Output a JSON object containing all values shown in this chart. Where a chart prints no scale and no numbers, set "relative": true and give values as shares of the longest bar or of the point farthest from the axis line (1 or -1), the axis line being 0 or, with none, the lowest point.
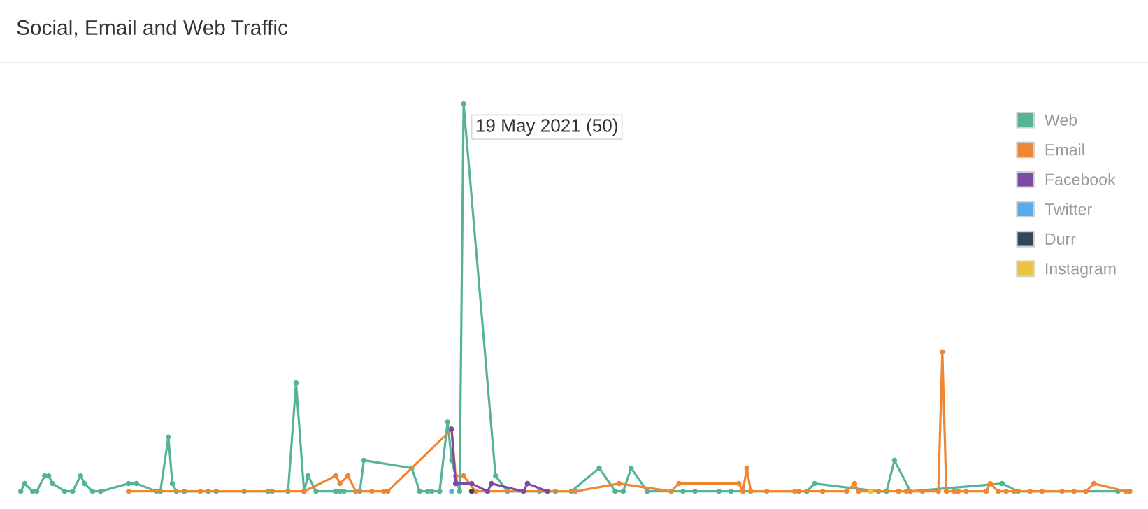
{
  "chart_data": {
    "type": "line",
    "title": "Social, Email and Web Traffic",
    "relative": true,
    "categories": [
      null,
      null,
      null,
      null,
      null,
      null,
      null,
      null,
      null,
      null,
      null,
      null,
      null,
      null,
      null,
      null,
      null,
      null,
      null,
      null,
      null,
      null,
      null,
      null,
      null,
      null,
      null,
      null,
      null,
      null,
      null,
      null,
      null,
      null,
      null,
      null,
      null,
      null,
      null,
      null,
      null,
      null,
      null,
      null,
      null,
      null,
      null,
      null,
      null,
      null,
      null,
      null,
      null,
      null,
      null,
      null,
      null,
      null,
      null,
      null,
      null,
      null,
      null,
      null,
      null,
      null,
      null,
      null,
      null,
      null,
      null,
      null,
      null,
      null,
      null,
      null,
      null,
      null,
      null,
      null,
      null,
      null,
      null,
      null,
      null,
      null,
      null,
      null,
      null,
      null,
      null,
      null,
      null,
      null,
      null,
      null,
      null,
      null,
      null,
      null,
      null,
      null,
      null,
      null,
      null,
      null,
      null,
      null,
      null,
      null,
      null,
      null,
      null,
      null,
      null,
      null,
      null,
      null,
      null,
      null,
      null,
      null,
      null,
      null,
      null,
      null,
      null,
      null,
      null,
      null,
      null,
      null,
      null,
      null,
      null,
      null,
      null,
      null,
      null,
      null,
      null,
      null,
      null,
      null,
      null,
      null,
      null,
      null,
      null,
      null,
      null,
      null,
      null,
      null,
      null,
      null,
      null,
      null,
      null,
      null,
      null,
      null,
      null,
      null,
      null,
      null,
      null,
      null,
      null,
      null,
      null,
      null,
      null,
      null,
      null,
      null,
      null,
      null,
      null,
      null,
      null,
      null,
      null,
      null,
      null,
      null,
      null,
      null,
      null,
      null,
      null,
      null,
      null,
      null,
      null,
      null,
      null,
      null,
      null,
      null,
      null,
      null,
      null,
      null,
      null,
      null,
      null,
      null,
      null,
      null,
      null,
      null,
      null,
      null,
      null,
      null,
      null,
      null,
      null,
      null,
      null,
      null,
      null,
      null,
      null,
      null,
      null,
      null,
      null,
      null,
      null,
      null,
      null,
      null,
      null,
      null,
      null,
      null,
      null,
      null,
      null,
      null,
      null,
      null,
      null,
      null,
      null,
      null,
      null,
      null,
      null,
      null,
      null,
      null,
      null,
      null,
      null,
      null,
      null,
      null,
      null,
      null,
      null,
      null,
      null,
      null,
      null,
      null,
      null,
      null,
      null,
      null,
      null,
      null,
      null,
      null,
      null,
      null,
      null
    ],
    "series": [
      {
        "name": "Web",
        "color": "#55b396",
        "values": [
          0,
          0.02,
          null,
          0,
          0,
          null,
          0.04,
          0.04,
          0.02,
          null,
          null,
          0,
          null,
          0,
          null,
          0.04,
          0.02,
          null,
          0,
          null,
          0,
          null,
          null,
          null,
          null,
          null,
          null,
          0.02,
          null,
          0.02,
          null,
          null,
          null,
          null,
          0,
          0,
          null,
          0.14,
          0.02,
          0,
          null,
          0,
          null,
          null,
          null,
          null,
          null,
          0,
          null,
          0,
          null,
          null,
          null,
          null,
          null,
          null,
          0,
          null,
          null,
          null,
          null,
          null,
          0,
          0,
          null,
          null,
          null,
          0,
          null,
          0.28,
          null,
          0,
          0.04,
          null,
          0,
          null,
          null,
          null,
          null,
          0,
          0,
          0,
          null,
          null,
          null,
          0,
          0.08,
          null,
          null,
          null,
          null,
          null,
          null,
          null,
          null,
          null,
          null,
          null,
          0.06,
          null,
          0,
          null,
          0,
          0,
          null,
          0,
          null,
          0.18,
          0.08,
          null,
          0,
          1,
          null,
          null,
          null,
          null,
          null,
          null,
          null,
          0.04,
          null,
          null,
          0,
          null,
          null,
          null,
          null,
          null,
          null,
          null,
          0,
          null,
          null,
          null,
          0,
          null,
          null,
          null,
          0,
          null,
          null,
          null,
          null,
          null,
          null,
          0.06,
          null,
          null,
          null,
          0,
          null,
          0,
          null,
          0.06,
          null,
          null,
          null,
          0,
          null,
          null,
          null,
          null,
          null,
          null,
          null,
          null,
          0,
          null,
          null,
          0,
          null,
          null,
          null,
          null,
          null,
          0,
          null,
          null,
          0,
          null,
          null,
          null,
          null,
          null,
          null,
          null,
          null,
          null,
          null,
          null,
          null,
          null,
          null,
          null,
          null,
          null,
          null,
          0,
          null,
          0.02,
          null,
          null,
          null,
          null,
          null,
          null,
          null,
          null,
          null,
          null,
          null,
          null,
          null,
          null,
          null,
          0,
          null,
          0,
          null,
          0.08,
          null,
          null,
          null,
          0,
          null,
          null,
          null,
          null,
          null,
          null,
          null,
          null,
          null,
          null,
          null,
          null,
          null,
          null,
          null,
          null,
          null,
          null,
          null,
          null,
          null,
          null,
          0.02,
          null,
          null,
          null,
          0,
          null,
          null,
          null,
          null,
          null,
          null,
          null,
          null,
          null,
          null,
          null,
          null,
          null,
          null,
          null,
          null,
          null,
          null,
          null,
          null,
          null,
          null,
          null,
          null,
          0,
          null,
          null,
          null
        ]
      },
      {
        "name": "Email",
        "color": "#ef8634",
        "values": [
          null,
          null,
          null,
          null,
          null,
          null,
          null,
          null,
          null,
          null,
          null,
          null,
          null,
          null,
          null,
          null,
          null,
          null,
          null,
          null,
          null,
          null,
          null,
          null,
          null,
          null,
          null,
          0,
          null,
          null,
          null,
          null,
          null,
          null,
          null,
          null,
          null,
          null,
          null,
          null,
          null,
          null,
          null,
          null,
          null,
          0,
          null,
          null,
          null,
          null,
          null,
          null,
          null,
          null,
          null,
          null,
          null,
          null,
          null,
          null,
          null,
          null,
          null,
          null,
          null,
          null,
          null,
          null,
          null,
          null,
          null,
          0,
          null,
          null,
          null,
          null,
          null,
          null,
          null,
          0.04,
          0.02,
          null,
          0.04,
          null,
          0,
          null,
          null,
          null,
          0,
          null,
          null,
          0,
          0,
          null,
          null,
          null,
          null,
          null,
          null,
          null,
          null,
          null,
          null,
          null,
          null,
          null,
          null,
          null,
          0.16,
          0.04,
          null,
          0.04,
          null,
          null,
          0,
          null,
          null,
          null,
          null,
          null,
          null,
          null,
          null,
          null,
          null,
          null,
          null,
          null,
          null,
          null,
          null,
          null,
          null,
          null,
          null,
          null,
          null,
          null,
          null,
          0,
          null,
          null,
          null,
          null,
          null,
          null,
          null,
          null,
          null,
          null,
          0.02,
          null,
          null,
          null,
          null,
          null,
          null,
          null,
          null,
          null,
          null,
          null,
          null,
          0,
          null,
          0.02,
          null,
          null,
          null,
          null,
          null,
          null,
          null,
          null,
          null,
          null,
          null,
          null,
          null,
          null,
          0.02,
          0,
          0.06,
          0,
          null,
          null,
          null,
          0,
          null,
          null,
          null,
          null,
          null,
          null,
          0,
          0,
          null,
          null,
          null,
          null,
          null,
          0,
          null,
          null,
          null,
          null,
          null,
          0,
          null,
          0.02,
          0,
          null,
          null,
          null,
          null,
          null,
          null,
          null,
          null,
          null,
          0,
          null,
          0,
          0,
          null,
          null,
          0,
          null,
          null,
          null,
          0,
          0.36,
          0,
          null,
          0,
          0,
          null,
          0,
          null,
          null,
          null,
          null,
          0,
          0.02,
          null,
          0,
          null,
          0,
          null,
          0,
          null,
          null,
          null,
          0,
          null,
          null,
          0,
          null,
          null,
          null,
          null,
          0,
          null,
          null,
          0,
          null,
          null,
          0,
          null,
          0.02,
          null,
          null,
          null,
          null,
          null,
          null,
          null,
          0,
          0
        ]
      },
      {
        "name": "Facebook",
        "color": "#7a4ba3",
        "values": [
          null,
          null,
          null,
          null,
          null,
          null,
          null,
          null,
          null,
          null,
          null,
          null,
          null,
          null,
          null,
          null,
          null,
          null,
          null,
          null,
          null,
          null,
          null,
          null,
          null,
          null,
          null,
          null,
          null,
          null,
          null,
          null,
          null,
          null,
          null,
          null,
          null,
          null,
          null,
          null,
          null,
          null,
          null,
          null,
          null,
          null,
          null,
          null,
          null,
          null,
          null,
          null,
          null,
          null,
          null,
          null,
          null,
          null,
          null,
          null,
          null,
          null,
          null,
          null,
          null,
          null,
          null,
          null,
          null,
          null,
          null,
          null,
          null,
          null,
          null,
          null,
          null,
          null,
          null,
          null,
          null,
          null,
          null,
          null,
          null,
          null,
          null,
          null,
          null,
          null,
          null,
          null,
          null,
          null,
          null,
          null,
          null,
          null,
          null,
          null,
          null,
          null,
          null,
          null,
          null,
          null,
          null,
          null,
          0.16,
          0.02,
          null,
          null,
          null,
          0.02,
          null,
          null,
          null,
          0,
          0.02,
          null,
          null,
          null,
          null,
          null,
          null,
          null,
          0,
          0.02,
          null,
          null,
          null,
          null,
          0,
          null,
          null,
          null,
          null,
          null,
          null,
          null,
          null,
          null,
          null,
          null,
          null,
          null,
          null,
          null,
          null,
          null,
          null,
          null,
          null,
          null,
          null,
          null,
          null,
          null,
          null,
          null,
          null,
          null,
          null,
          null,
          null,
          null,
          null,
          null,
          null,
          null,
          null,
          null,
          null,
          null,
          null,
          null,
          null,
          null,
          null,
          null,
          null,
          null,
          null,
          null,
          null,
          null,
          null,
          null,
          null,
          null,
          null,
          null,
          null,
          null,
          null,
          null,
          null,
          null,
          null,
          null,
          null,
          null,
          null,
          null,
          null,
          null,
          null,
          null,
          null,
          null,
          null,
          null,
          null,
          null,
          null,
          null,
          null,
          null,
          null,
          null,
          null,
          null,
          null,
          null,
          null,
          null,
          null,
          null,
          null,
          null,
          null,
          null,
          null,
          null,
          null,
          null,
          null,
          null,
          null,
          null,
          null,
          null,
          null,
          null,
          null,
          null,
          null,
          null,
          null,
          null,
          null,
          null,
          null,
          null,
          null,
          null,
          null,
          null,
          null,
          null,
          null,
          null,
          null,
          null,
          null,
          null,
          null,
          null,
          null,
          null,
          null,
          null,
          null,
          null,
          null,
          null,
          null,
          null,
          null
        ]
      },
      {
        "name": "Twitter",
        "color": "#58acea",
        "values": [
          null,
          null,
          null,
          null,
          null,
          null,
          null,
          null,
          null,
          null,
          null,
          null,
          null,
          null,
          null,
          null,
          null,
          null,
          null,
          null,
          null,
          null,
          null,
          null,
          null,
          null,
          null,
          null,
          null,
          null,
          null,
          null,
          null,
          null,
          null,
          null,
          null,
          null,
          null,
          null,
          null,
          null,
          null,
          null,
          null,
          null,
          null,
          null,
          null,
          null,
          null,
          null,
          null,
          null,
          null,
          null,
          null,
          null,
          null,
          null,
          null,
          null,
          null,
          null,
          null,
          null,
          null,
          null,
          null,
          null,
          null,
          null,
          null,
          null,
          null,
          null,
          null,
          null,
          null,
          null,
          null,
          null,
          null,
          null,
          null,
          null,
          null,
          null,
          null,
          null,
          null,
          null,
          null,
          null,
          null,
          null,
          null,
          null,
          null,
          null,
          null,
          null,
          null,
          null,
          null,
          null,
          null,
          null,
          0,
          null,
          null,
          null,
          null,
          null,
          null,
          null,
          null,
          null,
          null,
          null,
          null,
          null,
          null,
          null,
          null,
          null,
          null,
          null,
          null,
          null,
          null,
          null,
          null,
          null,
          null,
          null,
          null,
          null,
          null,
          null,
          null,
          null,
          null,
          null,
          null,
          null,
          null,
          null,
          null,
          null,
          null,
          null,
          null,
          null,
          null,
          null,
          null,
          null,
          null,
          null,
          null,
          null,
          null,
          null,
          null,
          null,
          null,
          null,
          null,
          null,
          null,
          null,
          null,
          null,
          null,
          null,
          null,
          null,
          null,
          null,
          null,
          null,
          null,
          null,
          null,
          null,
          null,
          null,
          null,
          null,
          null,
          null,
          null,
          null,
          null,
          null,
          null,
          null,
          null,
          null,
          null,
          null,
          null,
          null,
          null,
          null,
          null,
          null,
          null,
          null,
          null,
          null,
          null,
          null,
          null,
          null,
          null,
          null,
          null,
          null,
          null,
          null,
          null,
          null,
          null,
          null,
          null,
          null,
          null,
          null,
          null,
          null,
          null,
          null,
          null,
          null,
          null,
          null,
          null,
          null,
          null,
          null,
          null,
          null,
          null,
          null,
          null,
          null,
          null,
          null,
          null,
          null,
          null,
          null,
          null,
          null,
          null,
          null,
          null,
          null,
          null,
          null,
          null,
          null,
          null,
          null,
          null,
          null,
          null,
          null,
          null,
          null,
          null,
          null,
          null,
          null,
          null,
          null,
          null
        ]
      },
      {
        "name": "Durr",
        "color": "#35465c",
        "values": [
          null,
          null,
          null,
          null,
          null,
          null,
          null,
          null,
          null,
          null,
          null,
          null,
          null,
          null,
          null,
          null,
          null,
          null,
          null,
          null,
          null,
          null,
          null,
          null,
          null,
          null,
          null,
          null,
          null,
          null,
          null,
          null,
          null,
          null,
          null,
          null,
          null,
          null,
          null,
          null,
          null,
          null,
          null,
          null,
          null,
          null,
          null,
          null,
          null,
          null,
          null,
          null,
          null,
          null,
          null,
          null,
          null,
          null,
          null,
          null,
          null,
          null,
          null,
          null,
          null,
          null,
          null,
          null,
          null,
          null,
          null,
          null,
          null,
          null,
          null,
          null,
          null,
          null,
          null,
          null,
          null,
          null,
          null,
          null,
          null,
          null,
          null,
          null,
          null,
          null,
          null,
          null,
          null,
          null,
          null,
          null,
          null,
          null,
          null,
          null,
          null,
          null,
          null,
          null,
          null,
          null,
          null,
          null,
          null,
          null,
          null,
          null,
          null,
          0,
          null,
          null,
          null,
          null,
          null,
          null,
          null,
          null,
          null,
          null,
          null,
          null,
          null,
          null,
          null,
          null,
          null,
          null,
          null,
          null,
          null,
          null,
          null,
          null,
          null,
          null,
          null,
          null,
          null,
          null,
          null,
          null,
          null,
          null,
          null,
          null,
          null,
          null,
          null,
          null,
          null,
          null,
          null,
          null,
          null,
          null,
          null,
          null,
          null,
          null,
          null,
          null,
          null,
          null,
          null,
          null,
          null,
          null,
          null,
          null,
          null,
          null,
          null,
          null,
          null,
          null,
          null,
          null,
          null,
          null,
          null,
          null,
          null,
          null,
          null,
          null,
          null,
          null,
          null,
          null,
          null,
          null,
          null,
          null,
          null,
          null,
          null,
          null,
          null,
          null,
          null,
          null,
          null,
          null,
          null,
          null,
          null,
          null,
          null,
          null,
          null,
          null,
          null,
          null,
          null,
          null,
          null,
          null,
          null,
          null,
          null,
          null,
          null,
          null,
          null,
          null,
          null,
          null,
          null,
          null,
          null,
          null,
          null,
          null,
          null,
          null,
          null,
          null,
          null,
          null,
          null,
          null,
          null,
          null,
          null,
          null,
          null,
          null,
          null,
          null,
          null,
          null,
          null,
          null,
          null,
          null,
          null,
          null,
          null,
          null,
          null,
          null,
          null,
          null,
          null,
          null,
          null,
          null,
          null,
          null,
          null,
          null,
          null,
          null,
          null
        ]
      },
      {
        "name": "Instagram",
        "color": "#ebc63c",
        "values": [
          null,
          null,
          null,
          null,
          null,
          null,
          null,
          null,
          null,
          null,
          null,
          null,
          null,
          null,
          null,
          null,
          null,
          null,
          null,
          null,
          null,
          null,
          null,
          null,
          null,
          null,
          null,
          null,
          null,
          null,
          null,
          null,
          null,
          null,
          null,
          null,
          null,
          null,
          null,
          null,
          null,
          null,
          null,
          null,
          null,
          null,
          null,
          null,
          null,
          null,
          null,
          null,
          null,
          null,
          null,
          null,
          null,
          null,
          null,
          null,
          null,
          null,
          null,
          null,
          null,
          null,
          null,
          null,
          null,
          null,
          null,
          null,
          null,
          null,
          null,
          null,
          null,
          null,
          null,
          null,
          null,
          null,
          null,
          null,
          null,
          null,
          null,
          null,
          null,
          null,
          null,
          null,
          null,
          null,
          null,
          null,
          null,
          null,
          null,
          null,
          null,
          null,
          null,
          null,
          null,
          null,
          null,
          null,
          null,
          null,
          null,
          null,
          null,
          null,
          null,
          null,
          null,
          null,
          null,
          null,
          null,
          null,
          null,
          null,
          null,
          null,
          null,
          null,
          null,
          null,
          null,
          null,
          null,
          null,
          null,
          null,
          null,
          null,
          null,
          null,
          null,
          null,
          null,
          null,
          null,
          null,
          null,
          null,
          null,
          null,
          null,
          null,
          null,
          null,
          null,
          null,
          null,
          null,
          null,
          null,
          null,
          null,
          null,
          null,
          null,
          null,
          null,
          null,
          null,
          null,
          null,
          null,
          null,
          null,
          null,
          null,
          null,
          null,
          null,
          null,
          null,
          null,
          null,
          null,
          null,
          null,
          null,
          null,
          null,
          null,
          null,
          null,
          null,
          null,
          null,
          null,
          null,
          null,
          null,
          null,
          null,
          null,
          null,
          null,
          null,
          null,
          null,
          null,
          null,
          null,
          null,
          null,
          null,
          0,
          null,
          null,
          null,
          null,
          null,
          null,
          null,
          null,
          null,
          null,
          null,
          null,
          null,
          null,
          null,
          null,
          null,
          null,
          null,
          null,
          null,
          null,
          null,
          null,
          null,
          null,
          null,
          null,
          null,
          null,
          null,
          null,
          null,
          null,
          null,
          null,
          null,
          null,
          null,
          null,
          null,
          null,
          null,
          null,
          null,
          null,
          null,
          null,
          null,
          null,
          null,
          null,
          null,
          null,
          null,
          null,
          null,
          null,
          null,
          null,
          null,
          null,
          null,
          null,
          null
        ]
      }
    ],
    "legend": "top right",
    "marker": "circle",
    "line_style": "solid",
    "annotations": [
      "19 May 2021 (50)"
    ]
  }
}
